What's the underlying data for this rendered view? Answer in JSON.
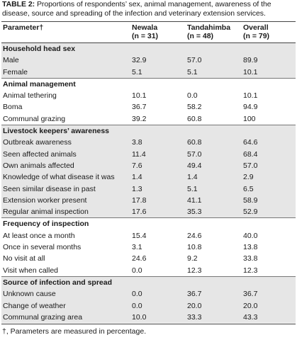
{
  "caption": {
    "label": "TABLE 2:",
    "text": "Proportions of respondents’ sex, animal management, awareness of the disease, source and spreading of the infection and veterinary extension services."
  },
  "header": {
    "parameter": "Parameter†",
    "columns": [
      {
        "name": "Newala",
        "n": "(n = 31)"
      },
      {
        "name": "Tandahimba",
        "n": "(n = 48)"
      },
      {
        "name": "Overall",
        "n": "(n = 79)"
      }
    ]
  },
  "sections": [
    {
      "title": "Household head sex",
      "rows": [
        {
          "label": "Male",
          "values": [
            "32.9",
            "57.0",
            "89.9"
          ]
        },
        {
          "label": "Female",
          "values": [
            "5.1",
            "5.1",
            "10.1"
          ]
        }
      ]
    },
    {
      "title": "Animal management",
      "rows": [
        {
          "label": "Animal tethering",
          "values": [
            "10.1",
            "0.0",
            "10.1"
          ]
        },
        {
          "label": "Boma",
          "values": [
            "36.7",
            "58.2",
            "94.9"
          ]
        },
        {
          "label": "Communal grazing",
          "values": [
            "39.2",
            "60.8",
            "100"
          ]
        }
      ]
    },
    {
      "title": "Livestock keepers’ awareness",
      "rows": [
        {
          "label": "Outbreak awareness",
          "values": [
            "3.8",
            "60.8",
            "64.6"
          ]
        },
        {
          "label": "Seen affected animals",
          "values": [
            "11.4",
            "57.0",
            "68.4"
          ]
        },
        {
          "label": "Own animals affected",
          "values": [
            "7.6",
            "49.4",
            "57.0"
          ]
        },
        {
          "label": "Knowledge of what disease it was",
          "values": [
            "1.4",
            "1.4",
            "2.9"
          ]
        },
        {
          "label": "Seen similar disease in past",
          "values": [
            "1.3",
            "5.1",
            "6.5"
          ]
        },
        {
          "label": "Extension worker present",
          "values": [
            "17.8",
            "41.1",
            "58.9"
          ]
        },
        {
          "label": "Regular animal inspection",
          "values": [
            "17.6",
            "35.3",
            "52.9"
          ]
        }
      ]
    },
    {
      "title": "Frequency of inspection",
      "rows": [
        {
          "label": "At least once a month",
          "values": [
            "15.4",
            "24.6",
            "40.0"
          ]
        },
        {
          "label": "Once in several months",
          "values": [
            "3.1",
            "10.8",
            "13.8"
          ]
        },
        {
          "label": "No visit at all",
          "values": [
            "24.6",
            "9.2",
            "33.8"
          ]
        },
        {
          "label": "Visit when called",
          "values": [
            "0.0",
            "12.3",
            "12.3"
          ]
        }
      ]
    },
    {
      "title": "Source of infection and spread",
      "rows": [
        {
          "label": "Unknown cause",
          "values": [
            "0.0",
            "36.7",
            "36.7"
          ]
        },
        {
          "label": "Change of weather",
          "values": [
            "0.0",
            "20.0",
            "20.0"
          ]
        },
        {
          "label": "Communal grazing area",
          "values": [
            "10.0",
            "33.3",
            "43.3"
          ]
        }
      ]
    }
  ],
  "footnote": "†, Parameters are measured in percentage.",
  "colors": {
    "shade": "#e6e6e6",
    "rule": "#444444"
  }
}
